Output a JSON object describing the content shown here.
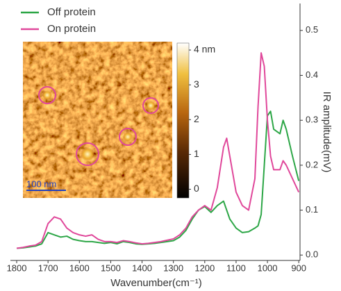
{
  "chart_data": {
    "type": "line",
    "x_label": "Wavenumber(cm⁻¹)",
    "y_label": "IR amplitude(mV)",
    "x": [
      1800,
      1780,
      1760,
      1740,
      1720,
      1700,
      1680,
      1660,
      1640,
      1620,
      1600,
      1580,
      1560,
      1540,
      1520,
      1500,
      1480,
      1460,
      1440,
      1420,
      1400,
      1380,
      1360,
      1340,
      1320,
      1300,
      1280,
      1260,
      1240,
      1220,
      1200,
      1180,
      1160,
      1140,
      1130,
      1120,
      1100,
      1080,
      1060,
      1040,
      1030,
      1020,
      1010,
      1000,
      990,
      980,
      960,
      950,
      940,
      920,
      900
    ],
    "series": [
      {
        "name": "Off protein",
        "color": "#2ca646",
        "values": [
          0.015,
          0.016,
          0.018,
          0.02,
          0.025,
          0.05,
          0.045,
          0.04,
          0.042,
          0.035,
          0.032,
          0.03,
          0.03,
          0.028,
          0.026,
          0.028,
          0.025,
          0.03,
          0.028,
          0.025,
          0.024,
          0.025,
          0.026,
          0.028,
          0.03,
          0.032,
          0.04,
          0.055,
          0.08,
          0.1,
          0.108,
          0.095,
          0.11,
          0.12,
          0.1,
          0.08,
          0.06,
          0.05,
          0.052,
          0.06,
          0.065,
          0.09,
          0.2,
          0.31,
          0.32,
          0.28,
          0.27,
          0.3,
          0.28,
          0.22,
          0.165
        ]
      },
      {
        "name": "On protein",
        "color": "#e0479a",
        "values": [
          0.015,
          0.017,
          0.02,
          0.022,
          0.03,
          0.07,
          0.085,
          0.08,
          0.06,
          0.05,
          0.045,
          0.042,
          0.045,
          0.035,
          0.03,
          0.03,
          0.028,
          0.032,
          0.03,
          0.027,
          0.025,
          0.026,
          0.028,
          0.03,
          0.033,
          0.036,
          0.045,
          0.06,
          0.085,
          0.1,
          0.11,
          0.1,
          0.15,
          0.24,
          0.26,
          0.22,
          0.14,
          0.11,
          0.1,
          0.17,
          0.33,
          0.45,
          0.42,
          0.3,
          0.22,
          0.19,
          0.19,
          0.21,
          0.2,
          0.17,
          0.14
        ]
      }
    ],
    "xlim": [
      1820,
      896
    ],
    "xticks": [
      1800,
      1700,
      1600,
      1500,
      1400,
      1300,
      1200,
      1100,
      1000,
      900
    ],
    "ylim": [
      -0.012,
      0.56
    ],
    "yticks": [
      {
        "value": 0,
        "label": "0.0"
      },
      0.1,
      0.2,
      0.3,
      0.4,
      0.5
    ],
    "y_axis_side": "right",
    "legend": "upper left",
    "inset": {
      "scale_bar": "100 nm",
      "colorbar": {
        "lim": [
          -0.25,
          4.2
        ],
        "ticks": [
          {
            "value": 4,
            "label": "4 nm"
          },
          3,
          2,
          1,
          0
        ]
      }
    }
  }
}
